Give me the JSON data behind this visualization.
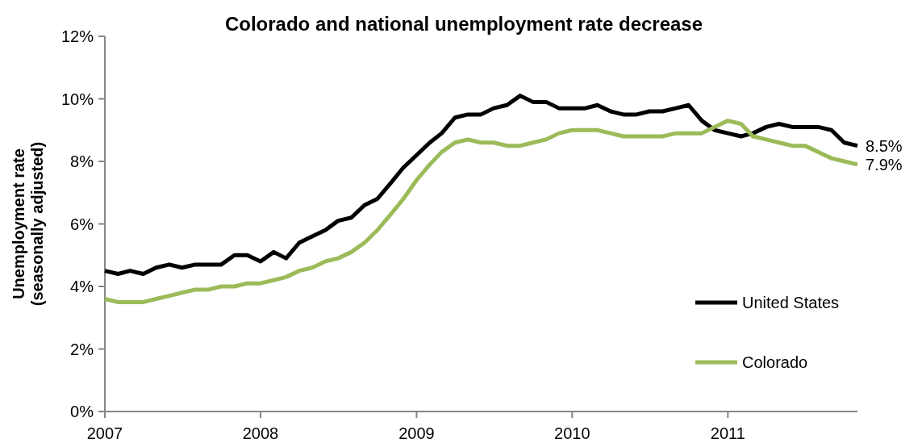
{
  "chart_data": {
    "type": "line",
    "title": "Colorado and national unemployment rate decrease",
    "ylabel": "Unemployment rate\n(seasonally adjusted)",
    "x": [
      "2007-01",
      "2007-02",
      "2007-03",
      "2007-04",
      "2007-05",
      "2007-06",
      "2007-07",
      "2007-08",
      "2007-09",
      "2007-10",
      "2007-11",
      "2007-12",
      "2008-01",
      "2008-02",
      "2008-03",
      "2008-04",
      "2008-05",
      "2008-06",
      "2008-07",
      "2008-08",
      "2008-09",
      "2008-10",
      "2008-11",
      "2008-12",
      "2009-01",
      "2009-02",
      "2009-03",
      "2009-04",
      "2009-05",
      "2009-06",
      "2009-07",
      "2009-08",
      "2009-09",
      "2009-10",
      "2009-11",
      "2009-12",
      "2010-01",
      "2010-02",
      "2010-03",
      "2010-04",
      "2010-05",
      "2010-06",
      "2010-07",
      "2010-08",
      "2010-09",
      "2010-10",
      "2010-11",
      "2010-12",
      "2011-01",
      "2011-02",
      "2011-03",
      "2011-04",
      "2011-05",
      "2011-06",
      "2011-07",
      "2011-08",
      "2011-09",
      "2011-10",
      "2011-11"
    ],
    "series": [
      {
        "name": "United States",
        "color": "#000000",
        "values": [
          4.5,
          4.4,
          4.5,
          4.4,
          4.6,
          4.7,
          4.6,
          4.7,
          4.7,
          4.7,
          5.0,
          5.0,
          4.8,
          5.1,
          4.9,
          5.4,
          5.6,
          5.8,
          6.1,
          6.2,
          6.6,
          6.8,
          7.3,
          7.8,
          8.2,
          8.6,
          8.9,
          9.4,
          9.5,
          9.5,
          9.7,
          9.8,
          10.1,
          9.9,
          9.9,
          9.7,
          9.7,
          9.7,
          9.8,
          9.6,
          9.5,
          9.5,
          9.6,
          9.6,
          9.7,
          9.8,
          9.3,
          9.0,
          8.9,
          8.8,
          8.9,
          9.1,
          9.2,
          9.1,
          9.1,
          9.1,
          9.0,
          8.6,
          8.5
        ]
      },
      {
        "name": "Colorado",
        "color": "#9bbb59",
        "values": [
          3.6,
          3.5,
          3.5,
          3.5,
          3.6,
          3.7,
          3.8,
          3.9,
          3.9,
          4.0,
          4.0,
          4.1,
          4.1,
          4.2,
          4.3,
          4.5,
          4.6,
          4.8,
          4.9,
          5.1,
          5.4,
          5.8,
          6.3,
          6.8,
          7.4,
          7.9,
          8.3,
          8.6,
          8.7,
          8.6,
          8.6,
          8.5,
          8.5,
          8.6,
          8.7,
          8.9,
          9.0,
          9.0,
          9.0,
          8.9,
          8.8,
          8.8,
          8.8,
          8.8,
          8.9,
          8.9,
          8.9,
          9.1,
          9.3,
          9.2,
          8.8,
          8.7,
          8.6,
          8.5,
          8.5,
          8.3,
          8.1,
          8.0,
          7.9
        ]
      }
    ],
    "annotations": [
      {
        "text": "8.5%",
        "x": "2011-11",
        "y": 8.5
      },
      {
        "text": "7.9%",
        "x": "2011-11",
        "y": 7.9
      }
    ],
    "xlim": [
      "2007-01",
      "2011-11"
    ],
    "xticks": [
      {
        "value": "2007-01",
        "label": "2007"
      },
      {
        "value": "2008-01",
        "label": "2008"
      },
      {
        "value": "2009-01",
        "label": "2009"
      },
      {
        "value": "2010-01",
        "label": "2010"
      },
      {
        "value": "2011-01",
        "label": "2011"
      }
    ],
    "ylim": [
      0,
      12
    ],
    "yticks": [
      {
        "value": 0,
        "label": "0%"
      },
      {
        "value": 2,
        "label": "2%"
      },
      {
        "value": 4,
        "label": "4%"
      },
      {
        "value": 6,
        "label": "6%"
      },
      {
        "value": 8,
        "label": "8%"
      },
      {
        "value": 10,
        "label": "10%"
      },
      {
        "value": 12,
        "label": "12%"
      }
    ],
    "legend": "right",
    "grid": false,
    "marker": "none",
    "line_style": "solid"
  }
}
